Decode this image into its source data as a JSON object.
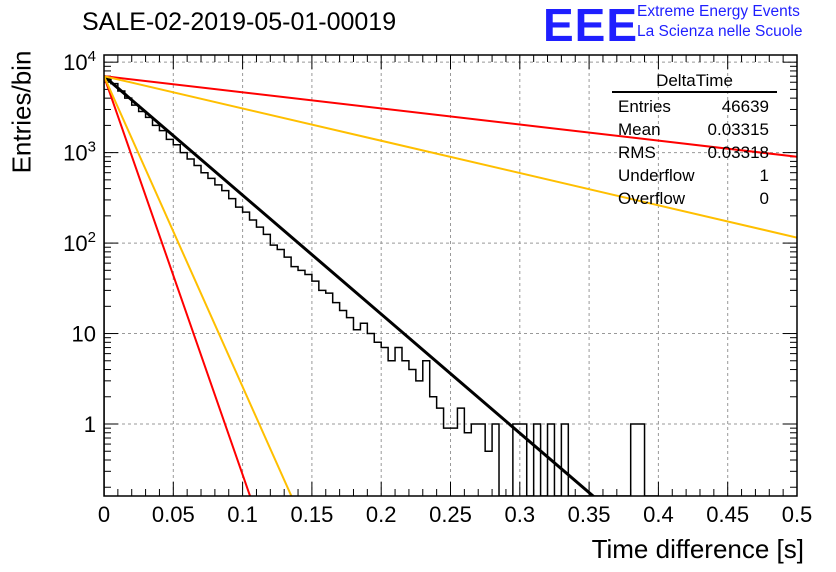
{
  "page": {
    "title": "SALE-02-2019-05-01-00019",
    "logo": {
      "mark": "EEE",
      "line1": "Extreme Energy Events",
      "line2": "La Scienza nelle Scuole",
      "color": "#1f1fff"
    }
  },
  "stats_box": {
    "title": "DeltaTime",
    "rows": [
      {
        "label": "Entries",
        "value": "46639"
      },
      {
        "label": "Mean",
        "value": "0.03315"
      },
      {
        "label": "RMS",
        "value": "0.03318"
      },
      {
        "label": "Underflow",
        "value": "1"
      },
      {
        "label": "Overflow",
        "value": "0"
      }
    ]
  },
  "chart_data": {
    "type": "line",
    "title": "SALE-02-2019-05-01-00019",
    "xlabel": "Time difference [s]",
    "ylabel": "Entries/bin",
    "xlim": [
      0,
      0.5
    ],
    "ylim": [
      0.16,
      12000
    ],
    "log_y": true,
    "grid": true,
    "x_ticks": [
      0,
      0.05,
      0.1,
      0.15,
      0.2,
      0.25,
      0.3,
      0.35,
      0.4,
      0.45,
      0.5
    ],
    "x_tick_labels": [
      "0",
      "0.05",
      "0.1",
      "0.15",
      "0.2",
      "0.25",
      "0.3",
      "0.35",
      "0.4",
      "0.45",
      "0.5"
    ],
    "y_ticks": [
      1,
      10,
      100,
      1000,
      10000
    ],
    "y_tick_labels": [
      "1",
      "10",
      "10^2",
      "10^3",
      "10^4"
    ],
    "histogram": {
      "color": "#000000",
      "bin_width": 0.005,
      "x": [
        0.0025,
        0.0075,
        0.0125,
        0.0175,
        0.0225,
        0.0275,
        0.0325,
        0.0375,
        0.0425,
        0.0475,
        0.0525,
        0.0575,
        0.0625,
        0.0675,
        0.0725,
        0.0775,
        0.0825,
        0.0875,
        0.0925,
        0.0975,
        0.1025,
        0.1075,
        0.1125,
        0.1175,
        0.1225,
        0.1275,
        0.1325,
        0.1375,
        0.1425,
        0.1475,
        0.1525,
        0.1575,
        0.1625,
        0.1675,
        0.1725,
        0.1775,
        0.1825,
        0.1875,
        0.1925,
        0.1975,
        0.2025,
        0.2075,
        0.2125,
        0.2175,
        0.2225,
        0.2275,
        0.2325,
        0.2375,
        0.2425,
        0.2475,
        0.2525,
        0.2575,
        0.2625,
        0.2675,
        0.2725,
        0.2775,
        0.2825,
        0.2875,
        0.2925,
        0.2975,
        0.3025,
        0.3075,
        0.3125,
        0.3175,
        0.3225,
        0.3275,
        0.3325,
        0.3375,
        0.3425,
        0.3475,
        0.3525,
        0.3575,
        0.3625,
        0.3675,
        0.3725,
        0.3775,
        0.3825,
        0.3875,
        0.3925,
        0.3975
      ],
      "values": [
        6500,
        5800,
        4800,
        4000,
        3350,
        2850,
        2450,
        2000,
        1750,
        1400,
        1220,
        1000,
        850,
        720,
        600,
        520,
        440,
        380,
        310,
        250,
        220,
        180,
        150,
        125,
        95,
        85,
        70,
        55,
        50,
        45,
        38,
        30,
        28,
        22,
        18,
        15,
        11,
        13,
        10,
        8,
        7,
        5,
        7,
        5,
        4,
        3,
        5,
        2,
        1.5,
        0.9,
        0.9,
        1.5,
        0.8,
        1,
        1,
        0.5,
        1,
        0,
        0,
        1,
        1,
        0,
        1,
        0,
        1,
        0,
        1,
        0,
        0,
        0,
        0,
        0,
        0,
        0,
        0,
        0,
        1,
        1,
        0,
        0
      ]
    },
    "series": [
      {
        "color": "#000000",
        "x": [
          0,
          0.355
        ],
        "values": [
          7000,
          0.15
        ]
      },
      {
        "color": "#ff0000",
        "x": [
          0,
          0.5
        ],
        "values": [
          7000,
          900
        ]
      },
      {
        "color": "#ffbf00",
        "x": [
          0,
          0.5
        ],
        "values": [
          7000,
          115
        ]
      },
      {
        "color": "#ff0000",
        "x": [
          0,
          0.106
        ],
        "values": [
          7000,
          0.15
        ]
      },
      {
        "color": "#ffbf00",
        "x": [
          0,
          0.136
        ],
        "values": [
          7000,
          0.15
        ]
      }
    ]
  }
}
